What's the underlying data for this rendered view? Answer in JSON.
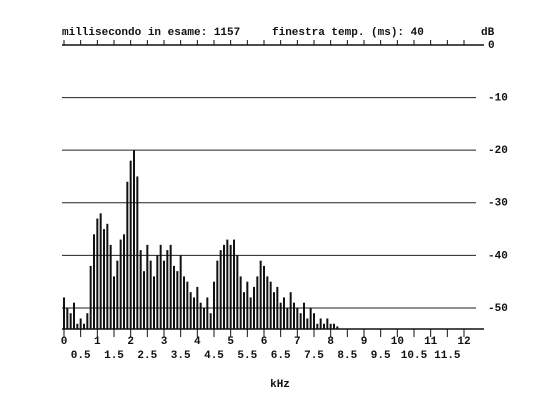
{
  "chart_data": {
    "type": "bar",
    "annotations": [
      "millisecondo in esame:  1157",
      "finestra temp. (ms):  40"
    ],
    "ylabel": "dB",
    "xlabel": "kHz",
    "x": [
      0,
      0.1,
      0.2,
      0.3,
      0.4,
      0.5,
      0.6,
      0.7,
      0.8,
      0.9,
      1,
      1.1,
      1.2,
      1.3,
      1.4,
      1.5,
      1.6,
      1.7,
      1.8,
      1.9,
      2,
      2.1,
      2.2,
      2.3,
      2.4,
      2.5,
      2.6,
      2.7,
      2.8,
      2.9,
      3,
      3.1,
      3.2,
      3.3,
      3.4,
      3.5,
      3.6,
      3.7,
      3.8,
      3.9,
      4,
      4.1,
      4.2,
      4.3,
      4.4,
      4.5,
      4.6,
      4.7,
      4.8,
      4.9,
      5,
      5.1,
      5.2,
      5.3,
      5.4,
      5.5,
      5.6,
      5.7,
      5.8,
      5.9,
      6,
      6.1,
      6.2,
      6.3,
      6.4,
      6.5,
      6.6,
      6.7,
      6.8,
      6.9,
      7,
      7.1,
      7.2,
      7.3,
      7.4,
      7.5,
      7.6,
      7.7,
      7.8,
      7.9,
      8,
      8.1,
      8.2
    ],
    "values": [
      -48,
      -50,
      -51,
      -49,
      -53,
      -52,
      -53,
      -51,
      -42,
      -36,
      -33,
      -32,
      -35,
      -34,
      -38,
      -44,
      -41,
      -37,
      -36,
      -26,
      -22,
      -20,
      -25,
      -39,
      -43,
      -38,
      -41,
      -44,
      -40,
      -38,
      -41,
      -39,
      -38,
      -42,
      -43,
      -40,
      -44,
      -45,
      -47,
      -48,
      -46,
      -49,
      -50,
      -48,
      -51,
      -45,
      -41,
      -39,
      -38,
      -37,
      -38,
      -37,
      -40,
      -44,
      -47,
      -45,
      -48,
      -46,
      -44,
      -41,
      -42,
      -44,
      -45,
      -47,
      -46,
      -49,
      -48,
      -50,
      -47,
      -49,
      -50,
      -51,
      -49,
      -52,
      -50,
      -51,
      -53,
      -52,
      -53,
      -52,
      -53,
      -53,
      -53.5
    ],
    "color": "#111111",
    "xlim": [
      0,
      12.6
    ],
    "xticks": [
      0,
      0.5,
      1,
      1.5,
      2,
      2.5,
      3,
      3.5,
      4,
      4.5,
      5,
      5.5,
      6,
      6.5,
      7,
      7.5,
      8,
      8.5,
      9,
      9.5,
      10,
      10.5,
      11,
      11.5,
      12
    ],
    "ylim": [
      -54,
      0
    ],
    "yticks": [
      0,
      -10,
      -20,
      -30,
      -40,
      -50
    ],
    "grid": true
  }
}
